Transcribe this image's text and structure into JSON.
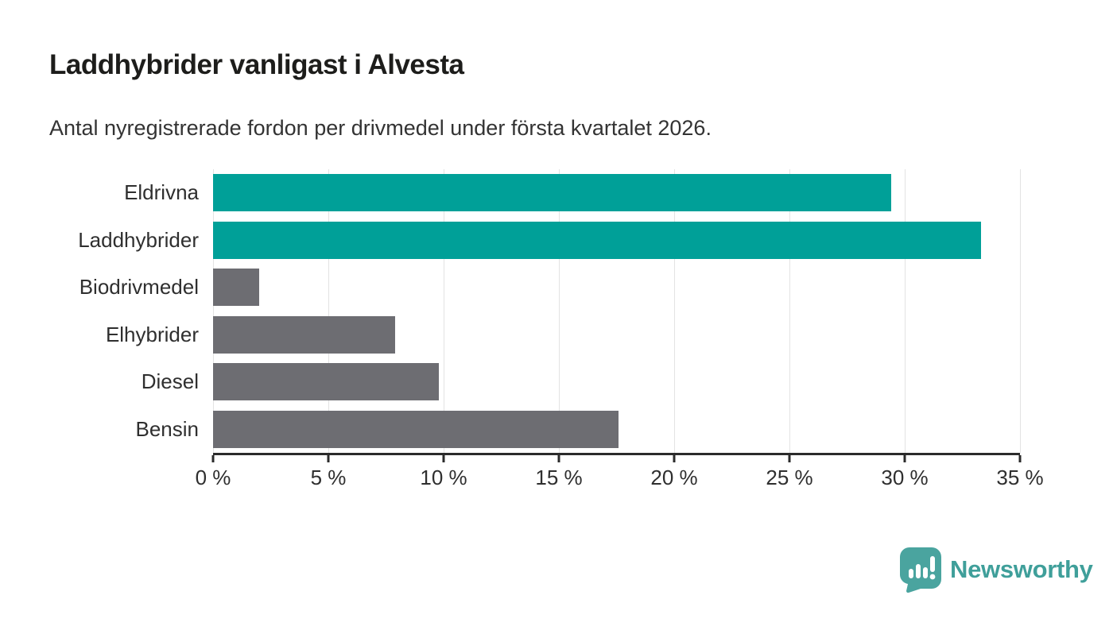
{
  "header": {
    "title": "Laddhybrider vanligast i Alvesta",
    "subtitle": "Antal nyregistrerade fordon per drivmedel under första kvartalet 2026."
  },
  "chart_data": {
    "type": "bar",
    "orientation": "horizontal",
    "title": "Laddhybrider vanligast i Alvesta",
    "subtitle": "Antal nyregistrerade fordon per drivmedel under första kvartalet 2026.",
    "categories": [
      "Eldrivna",
      "Laddhybrider",
      "Biodrivmedel",
      "Elhybrider",
      "Diesel",
      "Bensin"
    ],
    "values": [
      29.4,
      33.3,
      2.0,
      7.9,
      9.8,
      17.6
    ],
    "unit": "%",
    "xlim": [
      0,
      35
    ],
    "x_ticks": [
      0,
      5,
      10,
      15,
      20,
      25,
      30,
      35
    ],
    "x_tick_labels": [
      "0 %",
      "5 %",
      "10 %",
      "15 %",
      "20 %",
      "25 %",
      "30 %",
      "35 %"
    ],
    "grid": "vertical",
    "legend": "none",
    "bar_colors": [
      "#00a098",
      "#00a098",
      "#6d6d72",
      "#6d6d72",
      "#6d6d72",
      "#6d6d72"
    ]
  },
  "colors": {
    "highlight_teal": "#00a098",
    "neutral_gray": "#6d6d72",
    "gridline": "#e3e3e3",
    "axis": "#2b2b2b",
    "title_text": "#1d1d1b",
    "body_text": "#2f2f2f",
    "brand_teal": "#3f9f9a"
  },
  "footer": {
    "brand": "Newsworthy",
    "logo_icon": "newsworthy-speech-bubble-chart-icon"
  }
}
